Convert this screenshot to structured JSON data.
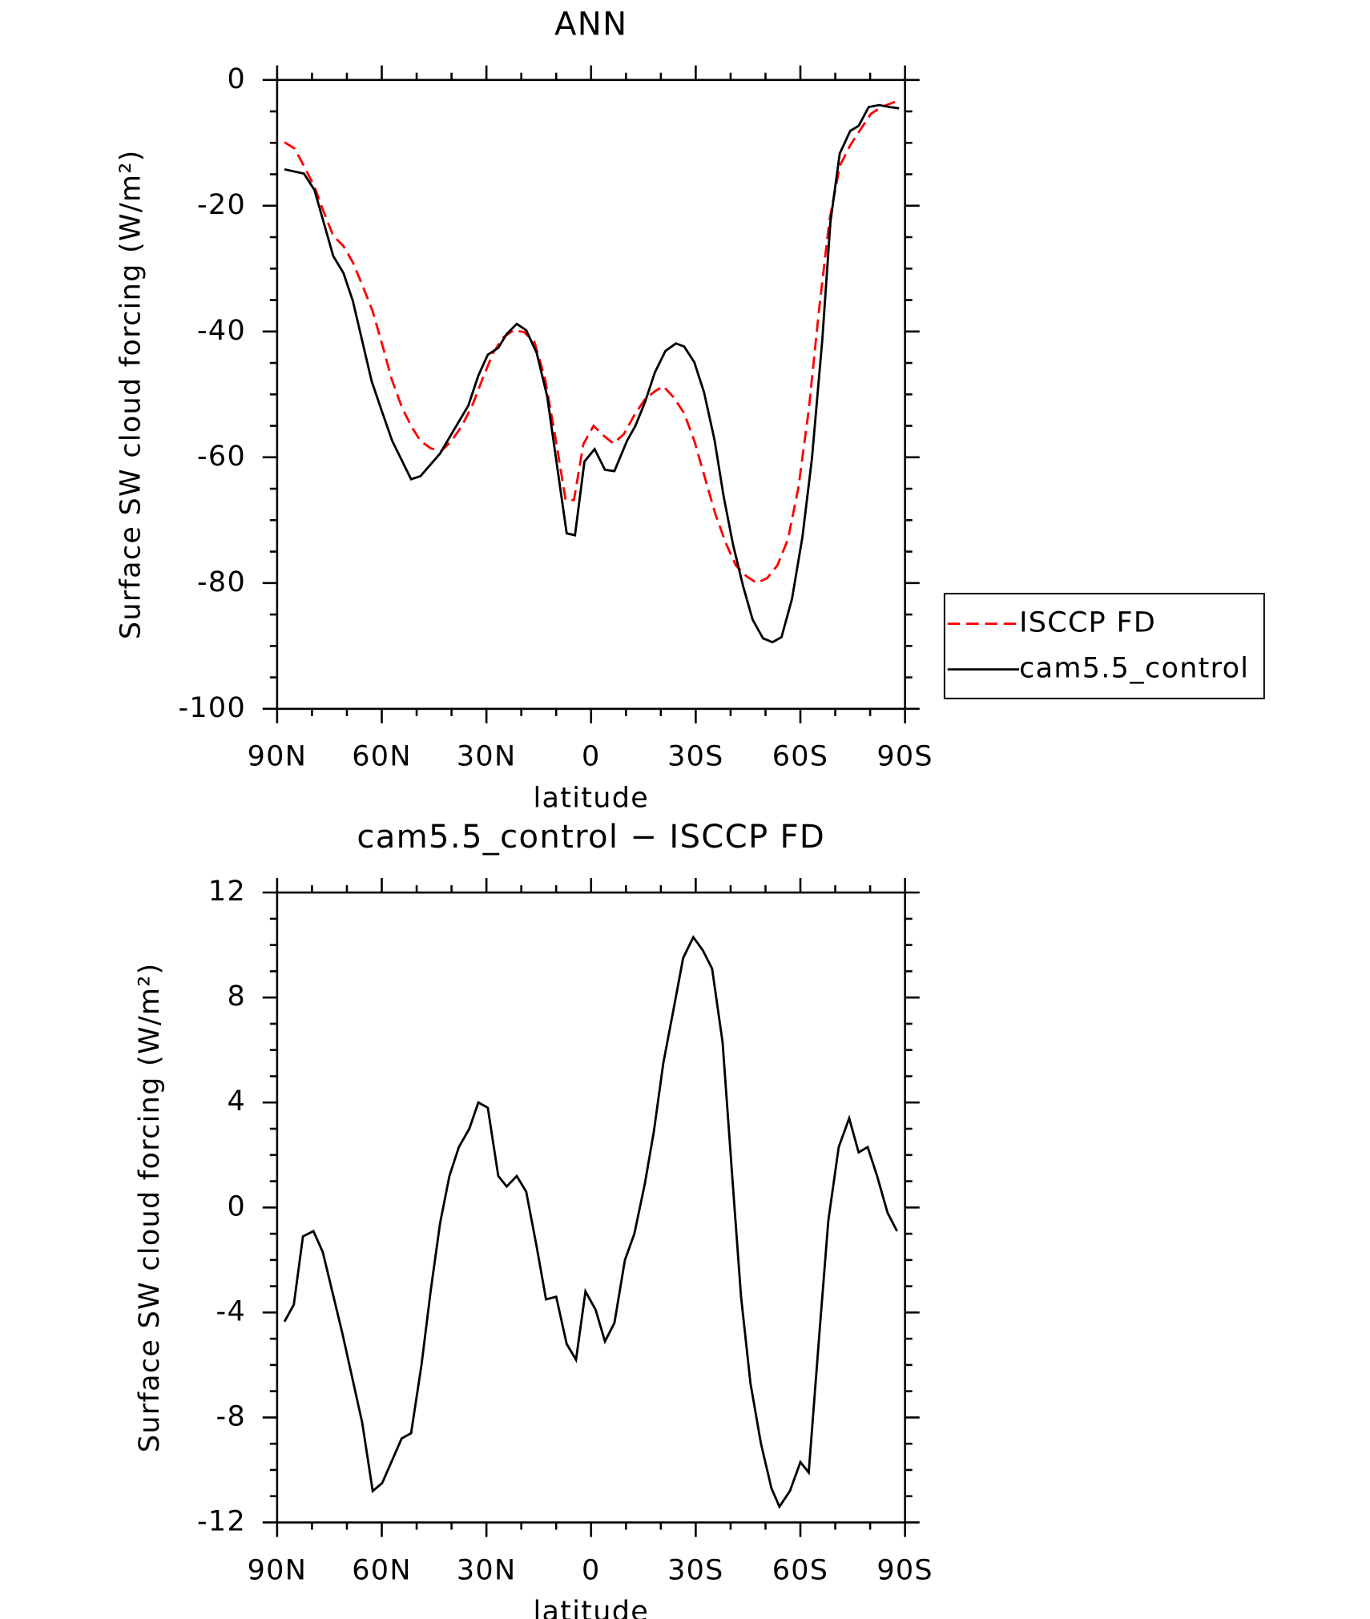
{
  "chart_data": [
    {
      "type": "line",
      "title": "ANN",
      "xlabel": "latitude",
      "ylabel": "Surface SW cloud forcing (W/m²)",
      "xlim": [
        90,
        -90
      ],
      "ylim": [
        -100,
        0
      ],
      "xticks": [
        {
          "value": 90,
          "label": "90N"
        },
        {
          "value": 60,
          "label": "60N"
        },
        {
          "value": 30,
          "label": "30N"
        },
        0,
        {
          "value": -30,
          "label": "30S"
        },
        {
          "value": -60,
          "label": "60S"
        },
        {
          "value": -90,
          "label": "90S"
        }
      ],
      "yticks": [
        0,
        -20,
        -40,
        -60,
        -80,
        -100
      ],
      "minor_xticks": [
        80,
        70,
        50,
        40,
        20,
        10,
        -10,
        -20,
        -40,
        -50,
        -70,
        -80
      ],
      "minor_yticks": [
        -5,
        -10,
        -15,
        -25,
        -30,
        -35,
        -45,
        -50,
        -55,
        -65,
        -70,
        -75,
        -85,
        -90,
        -95
      ],
      "legend": "outside-right",
      "series": [
        {
          "name": "ISCCP FD",
          "color": "#ff0000",
          "dash": true,
          "x": [
            87.9,
            85,
            82.3,
            79.3,
            76.6,
            73.9,
            71,
            68.3,
            65.5,
            62.6,
            59.6,
            57.2,
            54.2,
            51.3,
            48.9,
            45.9,
            42.9,
            40,
            37,
            34,
            31.1,
            28.1,
            25.1,
            22.2,
            19.2,
            16.2,
            13.2,
            10.3,
            7.3,
            4.9,
            2.2,
            -0.7,
            -3.7,
            -6.4,
            -9.4,
            -12.4,
            -15.4,
            -18.3,
            -20.7,
            -23.7,
            -26.7,
            -29.6,
            -32.6,
            -35.6,
            -38.6,
            -41.5,
            -44.5,
            -47.5,
            -50.5,
            -53.4,
            -56.4,
            -59.4,
            -62.4,
            -65.3,
            -68.3,
            -71.3,
            -74.3,
            -77.2,
            -80.2,
            -83.2,
            -88
          ],
          "values": [
            -9.9,
            -10.9,
            -13.7,
            -17,
            -21,
            -24.8,
            -26.4,
            -29,
            -32.7,
            -36.8,
            -42.6,
            -47.5,
            -52.1,
            -55.3,
            -57.4,
            -58.6,
            -59,
            -57.4,
            -55,
            -51.7,
            -47.5,
            -43.4,
            -40.9,
            -39.8,
            -40.1,
            -41.7,
            -47.5,
            -56.6,
            -66.8,
            -66.8,
            -57.9,
            -55,
            -56.6,
            -57.8,
            -56.3,
            -53.3,
            -50.8,
            -49.5,
            -48.7,
            -50.5,
            -53,
            -57.4,
            -63.2,
            -69,
            -73.6,
            -77.2,
            -78.9,
            -80,
            -79.2,
            -77.2,
            -73.1,
            -64.9,
            -52.5,
            -36.8,
            -22.4,
            -13.7,
            -10.4,
            -7.9,
            -5.4,
            -4.3,
            -3.3
          ]
        },
        {
          "name": "cam5.5_control",
          "color": "#000000",
          "dash": false,
          "x": [
            87.9,
            82.3,
            79.3,
            73.9,
            71,
            68.3,
            62.9,
            59.9,
            57,
            51.6,
            48.9,
            43.3,
            38.2,
            35.2,
            32.3,
            29.6,
            26.6,
            24.2,
            21.3,
            18.6,
            15.6,
            12.6,
            10,
            7,
            4.6,
            1.9,
            -1,
            -4,
            -6.7,
            -10.3,
            -12.7,
            -15.4,
            -18.3,
            -21.3,
            -24.3,
            -26.7,
            -29.6,
            -32.4,
            -35.4,
            -38,
            -40.7,
            -43.6,
            -46.3,
            -49.3,
            -52,
            -54.6,
            -57.6,
            -60.6,
            -63.3,
            -66.3,
            -68.6,
            -71.3,
            -74.3,
            -76.7,
            -79.6,
            -82.6,
            -85.6,
            -88.3
          ],
          "values": [
            -14.2,
            -14.9,
            -17.5,
            -28,
            -30.7,
            -35.1,
            -47.9,
            -52.8,
            -57.4,
            -63.5,
            -63,
            -59.4,
            -54.6,
            -51.8,
            -47,
            -43.7,
            -42.6,
            -40.4,
            -38.8,
            -39.8,
            -43.4,
            -50.3,
            -60.4,
            -72.1,
            -72.4,
            -60.7,
            -58.7,
            -62,
            -62.2,
            -57.4,
            -55,
            -51.3,
            -46.5,
            -43.1,
            -41.9,
            -42.4,
            -44.9,
            -49.7,
            -57.3,
            -66.2,
            -73.9,
            -80.5,
            -85.8,
            -88.8,
            -89.4,
            -88.6,
            -82.5,
            -72.6,
            -60.2,
            -41.3,
            -22.6,
            -11.7,
            -8.1,
            -7.3,
            -4.3,
            -4,
            -4.3,
            -4.5
          ]
        }
      ]
    },
    {
      "type": "line",
      "title": "cam5.5_control − ISCCP FD",
      "xlabel": "latitude",
      "ylabel": "Surface SW cloud forcing (W/m²)",
      "xlim": [
        90,
        -90
      ],
      "ylim": [
        -12,
        12
      ],
      "xticks": [
        {
          "value": 90,
          "label": "90N"
        },
        {
          "value": 60,
          "label": "60N"
        },
        {
          "value": 30,
          "label": "30N"
        },
        0,
        {
          "value": -30,
          "label": "30S"
        },
        {
          "value": -60,
          "label": "60S"
        },
        {
          "value": -90,
          "label": "90S"
        }
      ],
      "yticks": [
        12,
        8,
        4,
        0,
        -4,
        -8,
        -12
      ],
      "minor_xticks": [
        80,
        70,
        50,
        40,
        20,
        10,
        -10,
        -20,
        -40,
        -50,
        -70,
        -80
      ],
      "minor_yticks": [
        11,
        10,
        9,
        7,
        6,
        5,
        3,
        2,
        1,
        -1,
        -2,
        -3,
        -5,
        -6,
        -7,
        -9,
        -10,
        -11
      ],
      "series": [
        {
          "name": "cam5.5_control − ISCCP FD",
          "color": "#000000",
          "dash": false,
          "x": [
            87.9,
            85.2,
            82.6,
            79.6,
            76.9,
            71.3,
            65.6,
            62.6,
            59.9,
            54.3,
            51.6,
            48.6,
            46,
            43.3,
            40.6,
            37.9,
            34.9,
            32.3,
            29.6,
            26.6,
            24.2,
            21.3,
            18.6,
            15.6,
            12.9,
            10,
            7,
            4.3,
            1.6,
            -1.3,
            -4,
            -6.7,
            -9.7,
            -12.4,
            -15.4,
            -18,
            -20.7,
            -23.7,
            -26.4,
            -29.3,
            -32,
            -34.7,
            -37.7,
            -40.4,
            -43,
            -45.7,
            -48.7,
            -51.7,
            -54,
            -57,
            -60,
            -62.4,
            -65.4,
            -68,
            -71,
            -74,
            -76.7,
            -79.3,
            -82,
            -85,
            -87.7
          ],
          "values": [
            -4.35,
            -3.7,
            -1.1,
            -0.9,
            -1.7,
            -4.8,
            -8.2,
            -10.8,
            -10.5,
            -8.8,
            -8.6,
            -6,
            -3.2,
            -0.6,
            1.2,
            2.3,
            3,
            4,
            3.8,
            1.2,
            0.8,
            1.2,
            0.6,
            -1.5,
            -3.5,
            -3.4,
            -5.2,
            -5.8,
            -3.2,
            -3.9,
            -5.1,
            -4.4,
            -2,
            -1,
            0.9,
            2.9,
            5.5,
            7.6,
            9.5,
            10.3,
            9.8,
            9.1,
            6.3,
            1.3,
            -3.4,
            -6.7,
            -9,
            -10.7,
            -11.4,
            -10.8,
            -9.7,
            -10.1,
            -4.9,
            -0.5,
            2.3,
            3.4,
            2.1,
            2.3,
            1.2,
            -0.2,
            -0.9
          ]
        }
      ]
    }
  ]
}
